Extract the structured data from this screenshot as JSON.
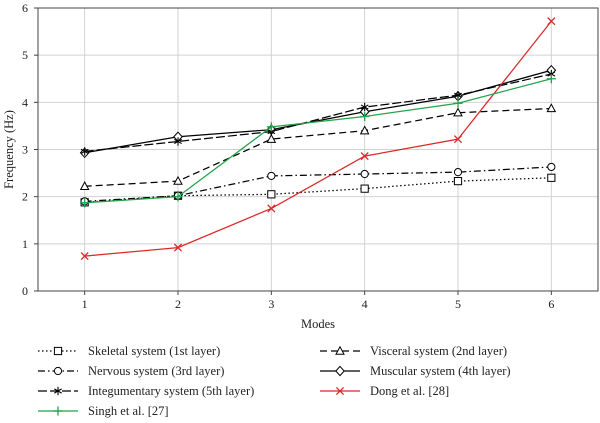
{
  "chart_data": {
    "type": "line",
    "xlabel": "Modes",
    "ylabel": "Frequency (Hz)",
    "xlim": [
      0.5,
      6.5
    ],
    "ylim": [
      0,
      6
    ],
    "x_ticks": [
      1,
      2,
      3,
      4,
      5,
      6
    ],
    "y_ticks": [
      0,
      1,
      2,
      3,
      4,
      5,
      6
    ],
    "grid": true,
    "legend_position": "bottom",
    "x": [
      1,
      2,
      3,
      4,
      5,
      6
    ],
    "series": [
      {
        "name": "Skeletal system (1st layer)",
        "values": [
          1.88,
          2.02,
          2.05,
          2.17,
          2.33,
          2.4
        ],
        "color": "#000000",
        "dash": "dotted",
        "marker": "square"
      },
      {
        "name": "Visceral system (2nd layer)",
        "values": [
          2.22,
          2.33,
          3.22,
          3.4,
          3.78,
          3.87
        ],
        "color": "#000000",
        "dash": "dashed",
        "marker": "triangle"
      },
      {
        "name": "Nervous system (3rd layer)",
        "values": [
          1.9,
          2.02,
          2.44,
          2.48,
          2.52,
          2.63
        ],
        "color": "#000000",
        "dash": "dashdot",
        "marker": "circle"
      },
      {
        "name": "Muscular system (4th layer)",
        "values": [
          2.93,
          3.27,
          3.42,
          3.8,
          4.13,
          4.68
        ],
        "color": "#000000",
        "dash": "solid",
        "marker": "diamond"
      },
      {
        "name": "Integumentary system (5th layer)",
        "values": [
          2.96,
          3.17,
          3.38,
          3.9,
          4.15,
          4.6
        ],
        "color": "#000000",
        "dash": "longdash",
        "marker": "asterisk"
      },
      {
        "name": "Dong et al. [28]",
        "values": [
          0.74,
          0.92,
          1.75,
          2.86,
          3.22,
          5.72
        ],
        "color": "#dc2828",
        "dash": "solid",
        "marker": "x"
      },
      {
        "name": "Singh et al. [27]",
        "values": [
          1.87,
          2.0,
          3.48,
          3.7,
          3.98,
          4.5
        ],
        "color": "#22a44a",
        "dash": "solid",
        "marker": "plus"
      }
    ],
    "legend_order": [
      0,
      1,
      2,
      3,
      4,
      5,
      6
    ]
  }
}
